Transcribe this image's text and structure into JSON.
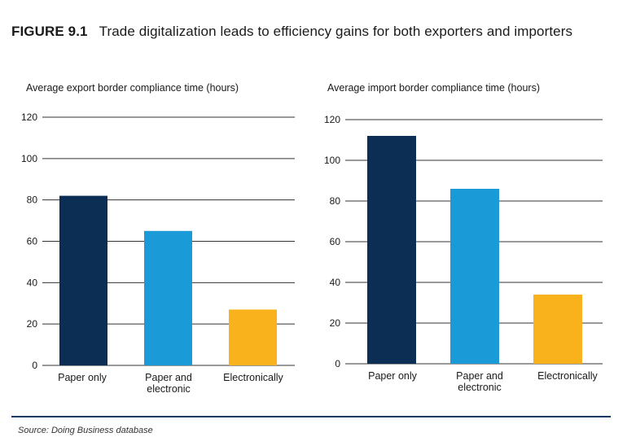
{
  "figure": {
    "number": "FIGURE 9.1",
    "title": "Trade digitalization leads to efficiency gains for both exporters and importers"
  },
  "source": "Source: Doing Business database",
  "colors": {
    "paper_only": "#0c2e55",
    "paper_and_electronic": "#1a9ad6",
    "electronically": "#f9b21b",
    "grid": "#333333"
  },
  "chart_data": [
    {
      "type": "bar",
      "title": "Average export border compliance time (hours)",
      "categories": [
        "Paper only",
        "Paper and electronic",
        "Electronically"
      ],
      "category_lines": [
        [
          "Paper only"
        ],
        [
          "Paper and",
          "electronic"
        ],
        [
          "Electronically"
        ]
      ],
      "values": [
        82,
        65,
        27
      ],
      "ylim": [
        0,
        120
      ],
      "yticks": [
        0,
        20,
        40,
        60,
        80,
        100,
        120
      ],
      "grid": true
    },
    {
      "type": "bar",
      "title": "Average import border compliance time (hours)",
      "categories": [
        "Paper only",
        "Paper and electronic",
        "Electronically"
      ],
      "category_lines": [
        [
          "Paper only"
        ],
        [
          "Paper and",
          "electronic"
        ],
        [
          "Electronically"
        ]
      ],
      "values": [
        112,
        86,
        34
      ],
      "ylim": [
        0,
        120
      ],
      "yticks": [
        0,
        20,
        40,
        60,
        80,
        100,
        120
      ],
      "grid": true
    }
  ]
}
